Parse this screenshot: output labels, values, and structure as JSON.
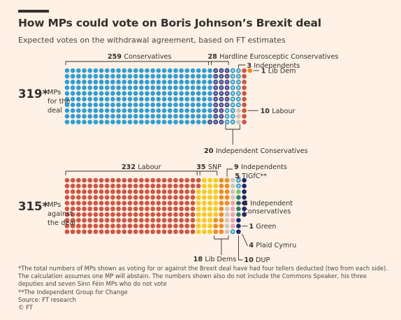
{
  "title": "How MPs could vote on Boris Johnson’s Brexit deal",
  "subtitle": "Expected votes on the withdrawal agreement, based on FT estimates",
  "chart_data": {
    "type": "waffle",
    "unit": "1 dot = 1 MP",
    "groups": [
      {
        "total": "319*",
        "label_lines": [
          "MPs",
          "for the",
          "deal"
        ],
        "series": [
          {
            "count": 259,
            "name": "Conservatives",
            "color": "#2e9fd6",
            "border": "#2e9fd6"
          },
          {
            "count": 28,
            "name": "Hardline Eurosceptic Conservatives",
            "color": "#8a76cc",
            "border": "#1a3a6e"
          },
          {
            "count": 20,
            "name": "Independent Conservatives",
            "color": "#8fd3f0",
            "border": "#1b8ab8"
          },
          {
            "count": 3,
            "name": "Independents",
            "color": "#cdc6be",
            "border": "#cdc6be"
          },
          {
            "count": 10,
            "name": "Labour",
            "color": "#d25442",
            "border": "#d25442"
          },
          {
            "count": 1,
            "name": "Lib Dem",
            "color": "#f08c1e",
            "border": "#f08c1e"
          }
        ]
      },
      {
        "total": "315*",
        "label_lines": [
          "MPs",
          "against",
          "the deal"
        ],
        "series": [
          {
            "count": 232,
            "name": "Labour",
            "color": "#d25442",
            "border": "#d25442"
          },
          {
            "count": 35,
            "name": "SNP",
            "color": "#f4cc1c",
            "border": "#f4cc1c"
          },
          {
            "count": 18,
            "name": "Lib Dems",
            "color": "#f08c1e",
            "border": "#f08c1e"
          },
          {
            "count": 9,
            "name": "Independents",
            "color": "#cdc6be",
            "border": "#cdc6be"
          },
          {
            "count": 5,
            "name": "TIGfC**",
            "color": "#f2a0b2",
            "border": "#f2a0b2"
          },
          {
            "count": 3,
            "name": "Independent Conservatives",
            "color": "#8fd3f0",
            "border": "#1b8ab8"
          },
          {
            "count": 1,
            "name": "Green",
            "color": "#72c86e",
            "border": "#72c86e"
          },
          {
            "count": 4,
            "name": "Plaid Cymru",
            "color": "#2f7f66",
            "border": "#2f7f66"
          },
          {
            "count": 10,
            "name": "DUP",
            "color": "#1a2a6e",
            "border": "#1a2a6e"
          }
        ]
      }
    ],
    "annotations": {
      "for": [
        {
          "num": "259",
          "text": "Conservatives"
        },
        {
          "num": "28",
          "text": "Hardline Eurosceptic Conservatives"
        },
        {
          "num": "3",
          "text": "Independents"
        },
        {
          "num": "10",
          "text": "Labour"
        },
        {
          "num": "1",
          "text": "Lib Dem"
        },
        {
          "num": "20",
          "text": "Independent Conservatives"
        }
      ],
      "against": [
        {
          "num": "232",
          "text": "Labour"
        },
        {
          "num": "35",
          "text": "SNP"
        },
        {
          "num": "9",
          "text": "Independents"
        },
        {
          "num": "5",
          "text": "TIGfC**"
        },
        {
          "num": "3",
          "text": "Independent",
          "text2": "Conservatives"
        },
        {
          "num": "1",
          "text": "Green"
        },
        {
          "num": "4",
          "text": "Plaid Cymru"
        },
        {
          "num": "18",
          "text": "Lib Dems"
        },
        {
          "num": "10",
          "text": "DUP"
        }
      ]
    }
  },
  "notes": {
    "footnote": "*The total numbers of MPs shown as voting for or against the Brexit deal have had four tellers deducted (two from each side). The calculation assumes one MP will abstain. The numbers shown also do not include the Commons Speaker, his three deputies and seven Sinn Féin MPs who do not vote",
    "footnote2": "**The Independent Group for Change",
    "source": "Source: FT research",
    "credit": "© FT"
  }
}
